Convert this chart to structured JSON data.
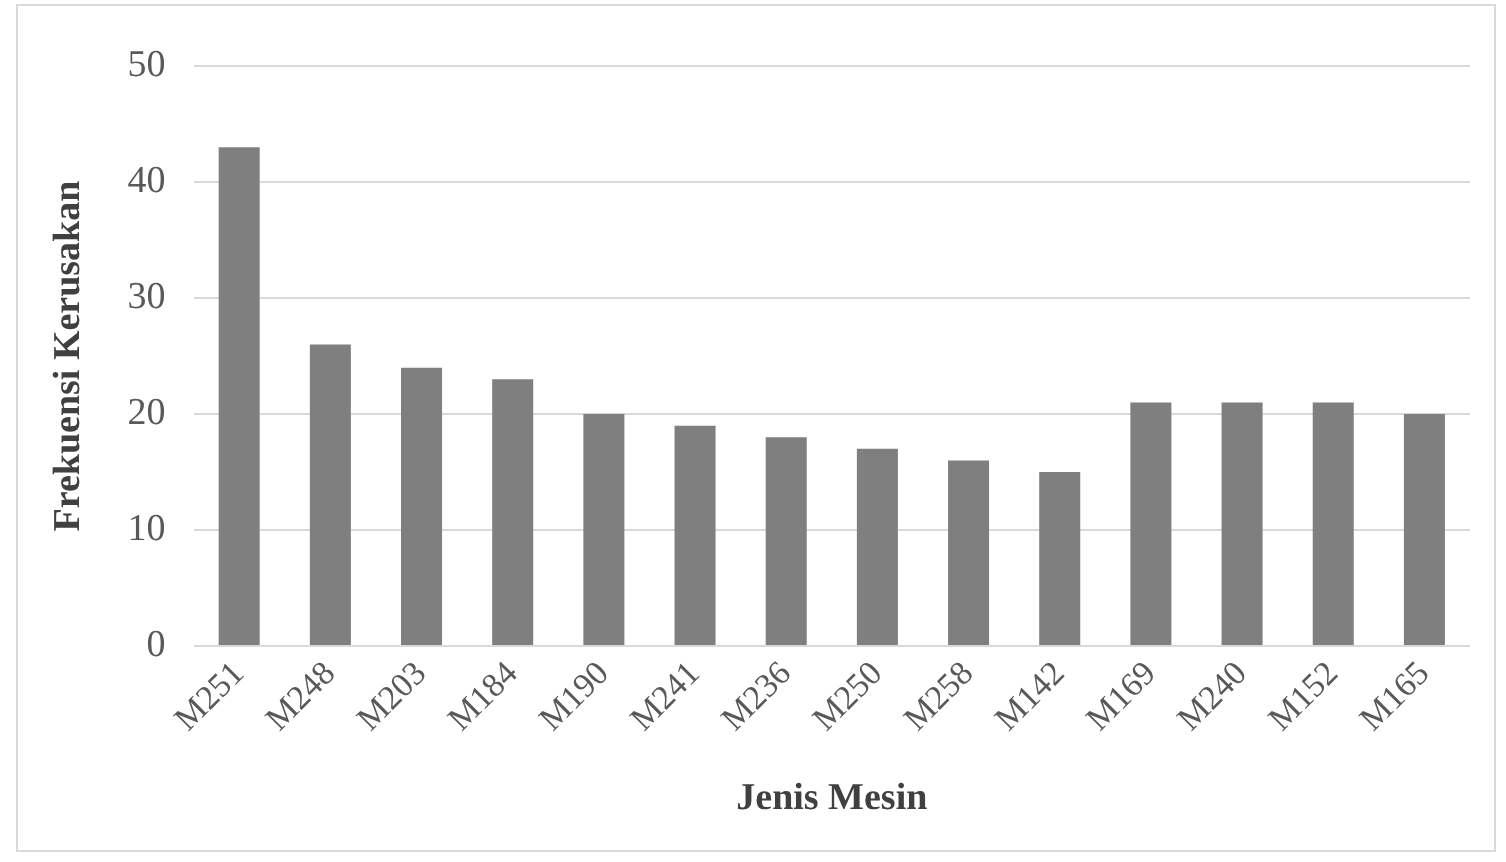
{
  "chart_data": {
    "type": "bar",
    "xlabel": "Jenis Mesin",
    "ylabel": "Frekuensi Kerusakan",
    "categories": [
      "M251",
      "M248",
      "M203",
      "M184",
      "M190",
      "M241",
      "M236",
      "M250",
      "M258",
      "M142",
      "M169",
      "M240",
      "M152",
      "M165"
    ],
    "values": [
      43,
      26,
      24,
      23,
      20,
      19,
      18,
      17,
      16,
      15,
      21,
      21,
      21,
      20
    ],
    "color": "#7f7f7f",
    "ylim": [
      0,
      50
    ],
    "yticks": [
      0,
      10,
      20,
      30,
      40,
      50
    ],
    "grid": "y",
    "legend": false
  }
}
